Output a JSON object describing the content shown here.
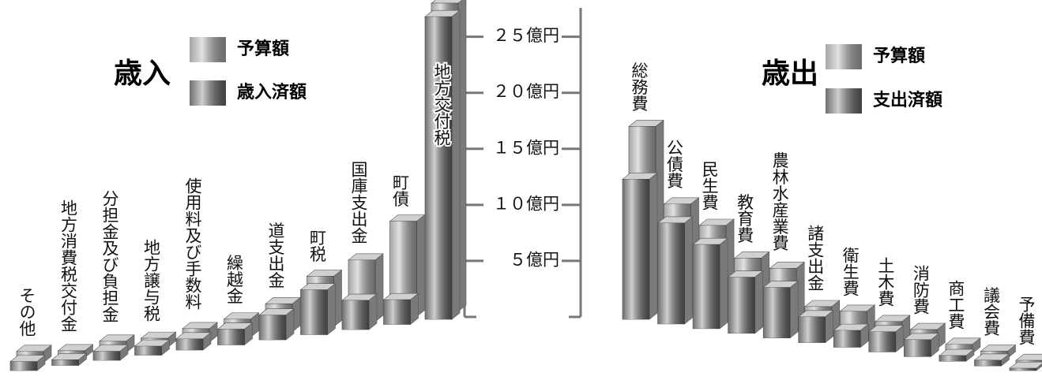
{
  "chart_data": [
    {
      "type": "bar3d",
      "title": "歳入",
      "categories": [
        "その他",
        "地方消費税交付金",
        "分担金及び負担金",
        "地方譲与税",
        "使用料及び手数料",
        "繰越金",
        "道支出金",
        "町税",
        "国庫支出金",
        "町債",
        "地方交付税"
      ],
      "series": [
        {
          "name": "予算額",
          "color": "#9c9c9c",
          "values": [
            1.0,
            0.6,
            1.0,
            0.8,
            1.2,
            1.6,
            2.5,
            4.5,
            5.5,
            8.5,
            27.5
          ]
        },
        {
          "name": "歳入済額",
          "color": "#5e5e5e",
          "values": [
            0.8,
            0.5,
            0.8,
            0.8,
            1.0,
            1.4,
            2.2,
            4.0,
            2.6,
            2.2,
            27.0
          ]
        }
      ],
      "ylim": [
        0,
        28
      ],
      "yticks": [
        {
          "value": 5,
          "label": "５億円"
        },
        {
          "value": 10,
          "label": "１０億円"
        },
        {
          "value": 15,
          "label": "１５億円"
        },
        {
          "value": 20,
          "label": "２０億円"
        },
        {
          "value": 25,
          "label": "２５億円"
        }
      ]
    },
    {
      "type": "bar3d",
      "title": "歳出",
      "categories": [
        "総務費",
        "公債費",
        "民生費",
        "教育費",
        "農林水産業費",
        "諸支出金",
        "衛生費",
        "土木費",
        "消防費",
        "商工費",
        "議会費",
        "予備費"
      ],
      "series": [
        {
          "name": "予算額",
          "color": "#9c9c9c",
          "values": [
            16.5,
            10.0,
            8.5,
            6.0,
            5.5,
            2.5,
            2.5,
            2.0,
            1.7,
            0.8,
            0.6,
            0.2
          ]
        },
        {
          "name": "支出済額",
          "color": "#5e5e5e",
          "values": [
            12.5,
            9.0,
            7.5,
            5.0,
            4.5,
            2.3,
            1.5,
            1.8,
            1.5,
            0.5,
            0.5,
            0.2
          ]
        }
      ],
      "ylim": [
        0,
        28
      ]
    }
  ]
}
